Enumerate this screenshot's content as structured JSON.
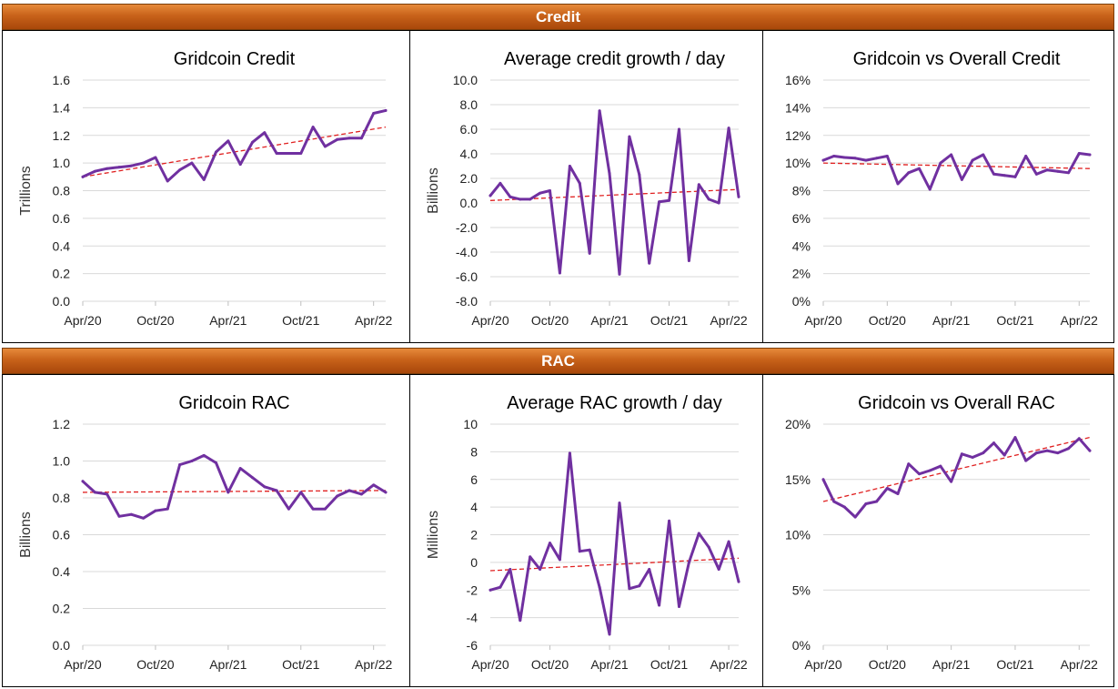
{
  "sections": {
    "credit_title": "Credit",
    "rac_title": "RAC"
  },
  "colors": {
    "series": "#7030a0",
    "trend": "#e02020",
    "grid": "#d9d9d9",
    "banner": "#c0601a"
  },
  "chart_data": [
    {
      "id": "gridcoin-credit",
      "type": "line",
      "title": "Gridcoin Credit",
      "ylabel": "Trillions",
      "xticks": [
        "Apr/20",
        "Oct/20",
        "Apr/21",
        "Oct/21",
        "Apr/22"
      ],
      "yticks": [
        "0.0",
        "0.2",
        "0.4",
        "0.6",
        "0.8",
        "1.0",
        "1.2",
        "1.4",
        "1.6"
      ],
      "ylim": [
        0,
        1.6
      ],
      "xlim": [
        0,
        25
      ],
      "trendline": true,
      "trend": [
        0.9,
        1.26
      ],
      "x": [
        0,
        1,
        2,
        3,
        4,
        5,
        6,
        7,
        8,
        9,
        10,
        11,
        12,
        13,
        14,
        15,
        16,
        17,
        18,
        19,
        20,
        21,
        22,
        23,
        24,
        25
      ],
      "values": [
        0.9,
        0.94,
        0.96,
        0.97,
        0.98,
        1.0,
        1.04,
        0.87,
        0.95,
        1.0,
        0.88,
        1.08,
        1.16,
        0.99,
        1.15,
        1.22,
        1.07,
        1.07,
        1.07,
        1.26,
        1.12,
        1.17,
        1.18,
        1.18,
        1.36,
        1.38
      ]
    },
    {
      "id": "avg-credit-growth",
      "type": "line",
      "title": "Average credit growth / day",
      "ylabel": "Billions",
      "xticks": [
        "Apr/20",
        "Oct/20",
        "Apr/21",
        "Oct/21",
        "Apr/22"
      ],
      "yticks": [
        "-8.0",
        "-6.0",
        "-4.0",
        "-2.0",
        "0.0",
        "2.0",
        "4.0",
        "6.0",
        "8.0",
        "10.0"
      ],
      "ylim": [
        -8,
        10
      ],
      "xlim": [
        0,
        25
      ],
      "trendline": true,
      "trend": [
        0.2,
        1.1
      ],
      "x": [
        0,
        1,
        2,
        3,
        4,
        5,
        6,
        7,
        8,
        9,
        10,
        11,
        12,
        13,
        14,
        15,
        16,
        17,
        18,
        19,
        20,
        21,
        22,
        23,
        24,
        25
      ],
      "values": [
        0.6,
        1.6,
        0.5,
        0.3,
        0.3,
        0.8,
        1.0,
        -5.7,
        3.0,
        1.6,
        -4.1,
        7.5,
        2.4,
        -5.8,
        5.4,
        2.3,
        -4.9,
        0.1,
        0.2,
        6.0,
        -4.7,
        1.5,
        0.3,
        0.0,
        6.1,
        0.5
      ]
    },
    {
      "id": "gridcoin-vs-overall-credit",
      "type": "line",
      "title": "Gridcoin vs Overall Credit",
      "ylabel": "",
      "xticks": [
        "Apr/20",
        "Oct/20",
        "Apr/21",
        "Oct/21",
        "Apr/22"
      ],
      "yticks": [
        "0%",
        "2%",
        "4%",
        "6%",
        "8%",
        "10%",
        "12%",
        "14%",
        "16%"
      ],
      "ylim": [
        0,
        16
      ],
      "xlim": [
        0,
        25
      ],
      "trendline": true,
      "trend": [
        10.0,
        9.6
      ],
      "x": [
        0,
        1,
        2,
        3,
        4,
        5,
        6,
        7,
        8,
        9,
        10,
        11,
        12,
        13,
        14,
        15,
        16,
        17,
        18,
        19,
        20,
        21,
        22,
        23,
        24,
        25
      ],
      "values": [
        10.2,
        10.5,
        10.4,
        10.35,
        10.2,
        10.35,
        10.5,
        8.5,
        9.3,
        9.6,
        8.1,
        10.0,
        10.6,
        8.8,
        10.2,
        10.6,
        9.2,
        9.1,
        9.0,
        10.5,
        9.2,
        9.5,
        9.4,
        9.3,
        10.7,
        10.6
      ]
    },
    {
      "id": "gridcoin-rac",
      "type": "line",
      "title": "Gridcoin RAC",
      "ylabel": "Billions",
      "xticks": [
        "Apr/20",
        "Oct/20",
        "Apr/21",
        "Oct/21",
        "Apr/22"
      ],
      "yticks": [
        "0.0",
        "0.2",
        "0.4",
        "0.6",
        "0.8",
        "1.0",
        "1.2"
      ],
      "ylim": [
        0,
        1.2
      ],
      "xlim": [
        0,
        25
      ],
      "trendline": true,
      "trend": [
        0.83,
        0.84
      ],
      "x": [
        0,
        1,
        2,
        3,
        4,
        5,
        6,
        7,
        8,
        9,
        10,
        11,
        12,
        13,
        14,
        15,
        16,
        17,
        18,
        19,
        20,
        21,
        22,
        23,
        24,
        25
      ],
      "values": [
        0.89,
        0.83,
        0.82,
        0.7,
        0.71,
        0.69,
        0.73,
        0.74,
        0.98,
        1.0,
        1.03,
        0.99,
        0.83,
        0.96,
        0.91,
        0.86,
        0.84,
        0.74,
        0.83,
        0.74,
        0.74,
        0.81,
        0.84,
        0.82,
        0.87,
        0.83
      ]
    },
    {
      "id": "avg-rac-growth",
      "type": "line",
      "title": "Average RAC growth / day",
      "ylabel": "Millions",
      "xticks": [
        "Apr/20",
        "Oct/20",
        "Apr/21",
        "Oct/21",
        "Apr/22"
      ],
      "yticks": [
        "-6",
        "-4",
        "-2",
        "0",
        "2",
        "4",
        "6",
        "8",
        "10"
      ],
      "ylim": [
        -6,
        10
      ],
      "xlim": [
        0,
        25
      ],
      "trendline": true,
      "trend": [
        -0.6,
        0.3
      ],
      "x": [
        0,
        1,
        2,
        3,
        4,
        5,
        6,
        7,
        8,
        9,
        10,
        11,
        12,
        13,
        14,
        15,
        16,
        17,
        18,
        19,
        20,
        21,
        22,
        23,
        24,
        25
      ],
      "values": [
        -2.0,
        -1.8,
        -0.5,
        -4.2,
        0.4,
        -0.5,
        1.4,
        0.2,
        7.9,
        0.8,
        0.9,
        -1.8,
        -5.2,
        4.3,
        -1.9,
        -1.7,
        -0.5,
        -3.1,
        3.0,
        -3.2,
        0.0,
        2.1,
        1.1,
        -0.5,
        1.5,
        -1.4
      ]
    },
    {
      "id": "gridcoin-vs-overall-rac",
      "type": "line",
      "title": "Gridcoin vs Overall RAC",
      "ylabel": "",
      "xticks": [
        "Apr/20",
        "Oct/20",
        "Apr/21",
        "Oct/21",
        "Apr/22"
      ],
      "yticks": [
        "0%",
        "5%",
        "10%",
        "15%",
        "20%"
      ],
      "ylim": [
        0,
        20
      ],
      "xlim": [
        0,
        25
      ],
      "trendline": true,
      "trend": [
        13.0,
        18.8
      ],
      "x": [
        0,
        1,
        2,
        3,
        4,
        5,
        6,
        7,
        8,
        9,
        10,
        11,
        12,
        13,
        14,
        15,
        16,
        17,
        18,
        19,
        20,
        21,
        22,
        23,
        24,
        25
      ],
      "values": [
        15.0,
        13.0,
        12.5,
        11.6,
        12.8,
        13.0,
        14.2,
        13.7,
        16.4,
        15.5,
        15.8,
        16.2,
        14.8,
        17.3,
        17.0,
        17.4,
        18.3,
        17.2,
        18.8,
        16.7,
        17.4,
        17.6,
        17.4,
        17.8,
        18.7,
        17.6
      ]
    }
  ]
}
